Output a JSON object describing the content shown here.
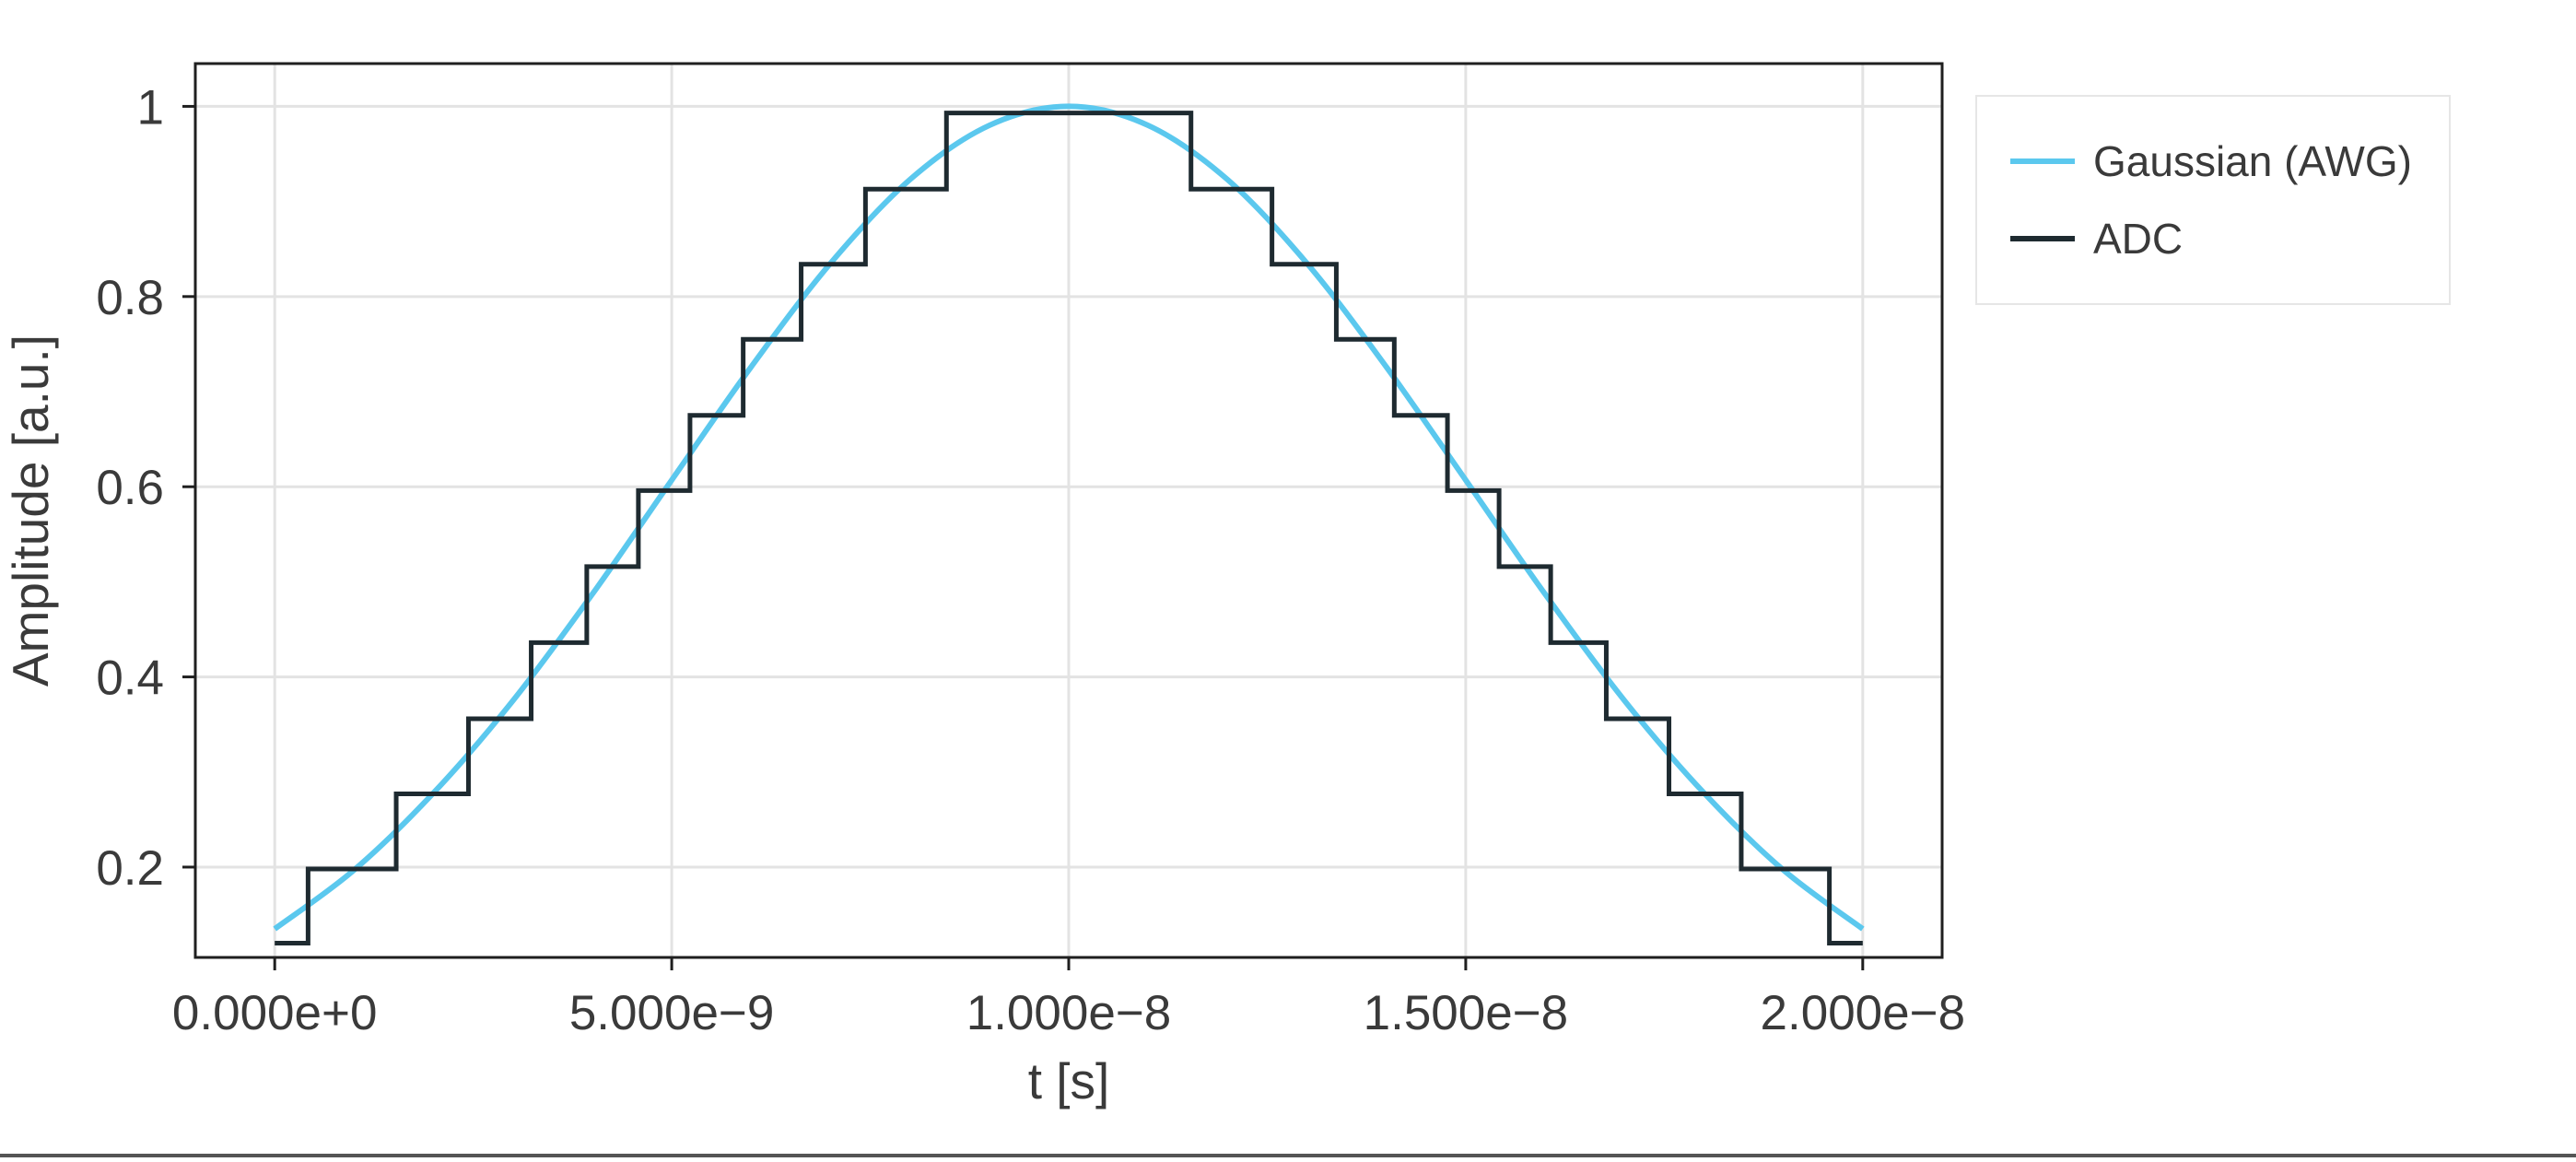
{
  "chart_data": {
    "type": "line",
    "title": "",
    "xlabel": "t [s]",
    "ylabel": "Amplitude [a.u.]",
    "xlim": [
      -1e-09,
      2.1e-08
    ],
    "ylim": [
      0.105,
      1.045
    ],
    "grid": true,
    "legend_position": "right-top",
    "x_ticks": [
      {
        "value": 0.0,
        "label": "0.000e+0"
      },
      {
        "value": 5e-09,
        "label": "5.000e−9"
      },
      {
        "value": 1e-08,
        "label": "1.000e−8"
      },
      {
        "value": 1.5e-08,
        "label": "1.500e−8"
      },
      {
        "value": 2e-08,
        "label": "2.000e−8"
      }
    ],
    "y_ticks": [
      {
        "value": 0.2,
        "label": "0.2"
      },
      {
        "value": 0.4,
        "label": "0.4"
      },
      {
        "value": 0.6,
        "label": "0.6"
      },
      {
        "value": 0.8,
        "label": "0.8"
      },
      {
        "value": 1.0,
        "label": "1"
      }
    ],
    "series": [
      {
        "name": "Gaussian (AWG)",
        "style": "line",
        "color": "#5bc8ee",
        "x": [
          0.0,
          1e-09,
          2e-09,
          3e-09,
          4e-09,
          5e-09,
          6e-09,
          7e-09,
          8e-09,
          9e-09,
          1e-08,
          1.1e-08,
          1.2e-08,
          1.3e-08,
          1.4e-08,
          1.5e-08,
          1.6e-08,
          1.7e-08,
          1.8e-08,
          1.9e-08,
          2e-08
        ],
        "y": [
          0.135,
          0.197,
          0.278,
          0.375,
          0.487,
          0.607,
          0.726,
          0.835,
          0.923,
          0.98,
          1.0,
          0.98,
          0.923,
          0.835,
          0.726,
          0.607,
          0.487,
          0.375,
          0.278,
          0.197,
          0.135
        ]
      },
      {
        "name": "ADC",
        "style": "step",
        "color": "#1e2a30",
        "x": [
          0.0,
          4.2e-10,
          1.53e-09,
          2.44e-09,
          3.23e-09,
          3.93e-09,
          4.58e-09,
          5.23e-09,
          5.9e-09,
          6.63e-09,
          7.44e-09,
          8.46e-09,
          1.154e-08,
          1.256e-08,
          1.337e-08,
          1.41e-08,
          1.477e-08,
          1.542e-08,
          1.607e-08,
          1.677e-08,
          1.756e-08,
          1.847e-08,
          1.958e-08,
          2e-08
        ],
        "y": [
          0.12,
          0.198,
          0.277,
          0.356,
          0.436,
          0.516,
          0.596,
          0.675,
          0.755,
          0.834,
          0.913,
          0.993,
          0.913,
          0.834,
          0.755,
          0.675,
          0.596,
          0.516,
          0.436,
          0.356,
          0.277,
          0.198,
          0.12,
          0.12
        ]
      }
    ]
  }
}
